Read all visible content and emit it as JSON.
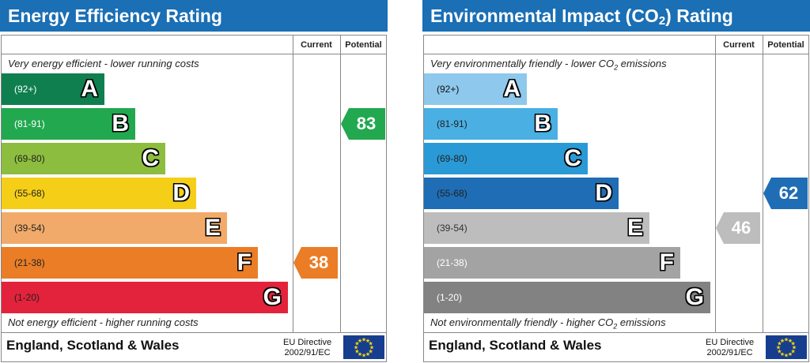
{
  "chart_data": [
    {
      "type": "bar",
      "title": "Energy Efficiency Rating",
      "columns": [
        "Current",
        "Potential"
      ],
      "top_caption": "Very energy efficient - lower running costs",
      "bottom_caption": "Not energy efficient - higher running costs",
      "bands": [
        {
          "letter": "A",
          "range": "(92+)",
          "color": "#0f7f4f",
          "text_color": "#ffffff"
        },
        {
          "letter": "B",
          "range": "(81-91)",
          "color": "#22a84f",
          "text_color": "#ffffff"
        },
        {
          "letter": "C",
          "range": "(69-80)",
          "color": "#8dbd3f",
          "text_color": "#222222"
        },
        {
          "letter": "D",
          "range": "(55-68)",
          "color": "#f5cf17",
          "text_color": "#222222"
        },
        {
          "letter": "E",
          "range": "(39-54)",
          "color": "#f2aa6a",
          "text_color": "#222222"
        },
        {
          "letter": "F",
          "range": "(21-38)",
          "color": "#ea7d26",
          "text_color": "#222222"
        },
        {
          "letter": "G",
          "range": "(1-20)",
          "color": "#e2233b",
          "text_color": "#222222"
        }
      ],
      "current": {
        "value": 38,
        "band": "F",
        "color": "#ea7d26"
      },
      "potential": {
        "value": 83,
        "band": "B",
        "color": "#22a84f"
      },
      "footer": {
        "country": "England, Scotland & Wales",
        "directive_line1": "EU Directive",
        "directive_line2": "2002/91/EC"
      }
    },
    {
      "type": "bar",
      "title_prefix": "Environmental Impact (CO",
      "title_sub": "2",
      "title_suffix": ") Rating",
      "columns": [
        "Current",
        "Potential"
      ],
      "top_caption_prefix": "Very environmentally friendly - lower CO",
      "top_caption_sub": "2",
      "top_caption_suffix": " emissions",
      "bottom_caption_prefix": "Not environmentally friendly - higher CO",
      "bottom_caption_sub": "2",
      "bottom_caption_suffix": " emissions",
      "bands": [
        {
          "letter": "A",
          "range": "(92+)",
          "color": "#8ec8ec",
          "text_color": "#111111"
        },
        {
          "letter": "B",
          "range": "(81-91)",
          "color": "#4aafe3",
          "text_color": "#222222"
        },
        {
          "letter": "C",
          "range": "(69-80)",
          "color": "#2a9ad6",
          "text_color": "#222222"
        },
        {
          "letter": "D",
          "range": "(55-68)",
          "color": "#1f6db5",
          "text_color": "#222222"
        },
        {
          "letter": "E",
          "range": "(39-54)",
          "color": "#bdbdbd",
          "text_color": "#333333"
        },
        {
          "letter": "F",
          "range": "(21-38)",
          "color": "#a3a3a3",
          "text_color": "#ffffff"
        },
        {
          "letter": "G",
          "range": "(1-20)",
          "color": "#828282",
          "text_color": "#ffffff"
        }
      ],
      "current": {
        "value": 46,
        "band": "E",
        "color": "#bdbdbd"
      },
      "potential": {
        "value": 62,
        "band": "D",
        "color": "#1f6db5"
      },
      "footer": {
        "country": "England, Scotland & Wales",
        "directive_line1": "EU Directive",
        "directive_line2": "2002/91/EC"
      }
    }
  ]
}
